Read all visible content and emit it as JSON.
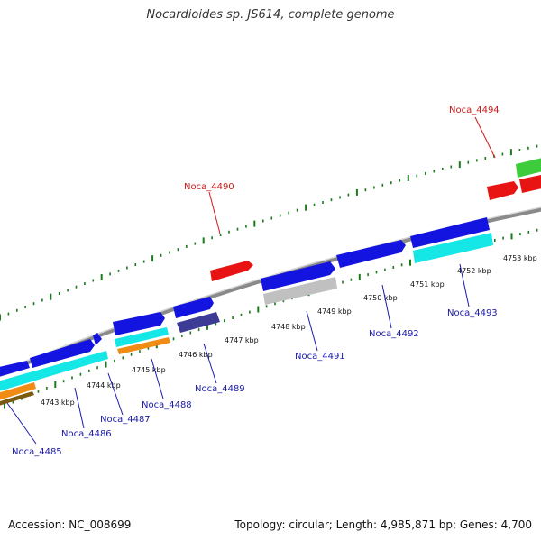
{
  "header": {
    "title": "Nocardioides sp. JS614, complete genome"
  },
  "footer": {
    "accession": "Accession: NC_008699",
    "summary": "Topology: circular; Length: 4,985,871 bp; Genes: 4,700"
  },
  "colors": {
    "backbone": "#7a7a7a",
    "ticks": "#1b7a1b",
    "forward_cds": "#1414e0",
    "reverse_cds": "#15e6e6",
    "orange_feature": "#f08c14",
    "navy_feature": "#3c3c96",
    "gray_feature": "#c0c0c0",
    "red_feature": "#e81414",
    "green_feature": "#3ccc3c",
    "label_blue": "#1a1aa8",
    "label_red": "#d01818"
  },
  "scale": {
    "kbp_labels": [
      "4743 kbp",
      "4744 kbp",
      "4745 kbp",
      "4746 kbp",
      "4747 kbp",
      "4748 kbp",
      "4749 kbp",
      "4750 kbp",
      "4751 kbp",
      "4752 kbp",
      "4753 kbp"
    ]
  },
  "genes": {
    "noca_4485": "Noca_4485",
    "noca_4486": "Noca_4486",
    "noca_4487": "Noca_4487",
    "noca_4488": "Noca_4488",
    "noca_4489": "Noca_4489",
    "noca_4490": "Noca_4490",
    "noca_4491": "Noca_4491",
    "noca_4492": "Noca_4492",
    "noca_4493": "Noca_4493",
    "noca_4494": "Noca_4494"
  }
}
